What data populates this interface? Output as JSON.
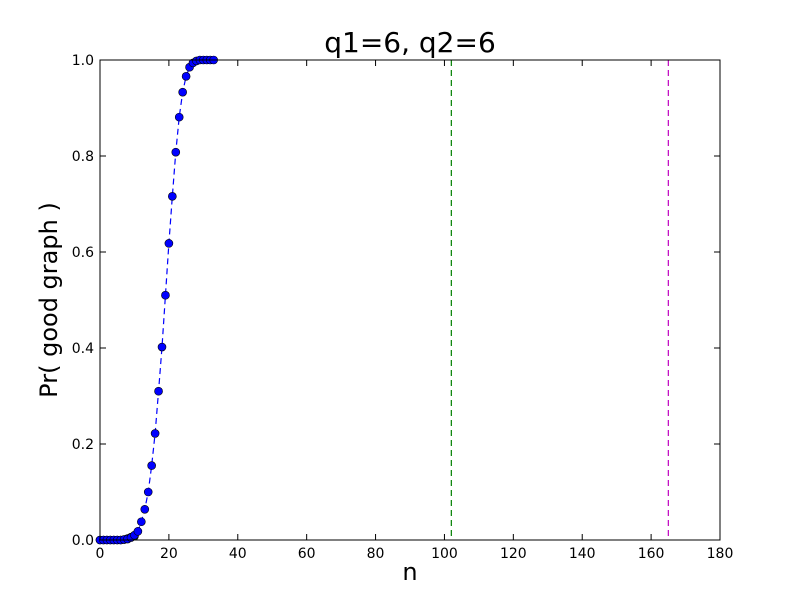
{
  "chart_data": {
    "type": "line",
    "title": "q1=6, q2=6",
    "xlabel": "n",
    "ylabel": "Pr( good graph )",
    "xlim": [
      0,
      180
    ],
    "ylim": [
      0.0,
      1.0
    ],
    "xticks": [
      0,
      20,
      40,
      60,
      80,
      100,
      120,
      140,
      160,
      180
    ],
    "xtick_labels": [
      "0",
      "20",
      "40",
      "60",
      "80",
      "100",
      "120",
      "140",
      "160",
      "180"
    ],
    "yticks": [
      0.0,
      0.2,
      0.4,
      0.6,
      0.8,
      1.0
    ],
    "ytick_labels": [
      "0.0",
      "0.2",
      "0.4",
      "0.6",
      "0.8",
      "1.0"
    ],
    "grid": false,
    "series": [
      {
        "style": "dashed line with circle markers",
        "line_color": "#0000ff",
        "marker_color": "#0000ff",
        "x": [
          0,
          1,
          2,
          3,
          4,
          5,
          6,
          7,
          8,
          9,
          10,
          11,
          12,
          13,
          14,
          15,
          16,
          17,
          18,
          19,
          20,
          21,
          22,
          23,
          24,
          25,
          26,
          27,
          28,
          29,
          30,
          31,
          32,
          33
        ],
        "y": [
          0,
          0,
          0,
          0,
          0,
          0,
          0,
          0.001,
          0.002,
          0.005,
          0.01,
          0.018,
          0.038,
          0.064,
          0.1,
          0.155,
          0.222,
          0.31,
          0.402,
          0.51,
          0.618,
          0.716,
          0.808,
          0.881,
          0.933,
          0.966,
          0.985,
          0.994,
          0.998,
          1.0,
          1.0,
          1.0,
          1.0,
          1.0
        ]
      },
      {
        "style": "circle markers",
        "marker_color": "#008000",
        "x": [
          0,
          1,
          2,
          3,
          4,
          5,
          6,
          7,
          8,
          9,
          10
        ],
        "y": [
          0,
          0,
          0,
          0,
          0,
          0,
          0,
          0.001,
          0.003,
          0.006,
          0.008
        ]
      }
    ],
    "vlines": [
      {
        "x": 102,
        "color": "#008000",
        "style": "dashed"
      },
      {
        "x": 165,
        "color": "#bf00bf",
        "style": "dashed"
      }
    ]
  }
}
